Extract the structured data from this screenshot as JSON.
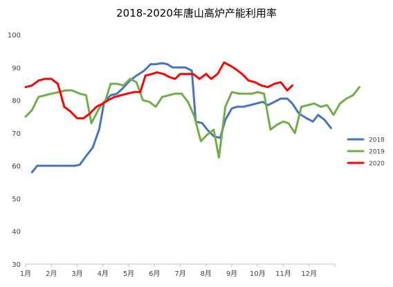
{
  "chart_data": {
    "type": "line",
    "title": "2018-2020年唐山高炉产能利用率",
    "xlabel": "",
    "ylabel": "",
    "ylim": [
      30,
      100
    ],
    "yticks": [
      30,
      40,
      50,
      60,
      70,
      80,
      90,
      100
    ],
    "xlim": [
      1,
      13.2
    ],
    "xticks": [
      {
        "value": 1,
        "label": "1月"
      },
      {
        "value": 2,
        "label": "2月"
      },
      {
        "value": 3,
        "label": "3月"
      },
      {
        "value": 4,
        "label": "4月"
      },
      {
        "value": 5,
        "label": "5月"
      },
      {
        "value": 6,
        "label": "6月"
      },
      {
        "value": 7,
        "label": "7月"
      },
      {
        "value": 8,
        "label": "8月"
      },
      {
        "value": 9,
        "label": "9月"
      },
      {
        "value": 10,
        "label": "10月"
      },
      {
        "value": 11,
        "label": "11月"
      },
      {
        "value": 12,
        "label": "12月"
      }
    ],
    "grid": false,
    "legend_position": "right",
    "series": [
      {
        "name": "2018",
        "color": "#4472C4",
        "points": [
          [
            1.25,
            58
          ],
          [
            1.45,
            60
          ],
          [
            1.7,
            60
          ],
          [
            2.0,
            60
          ],
          [
            2.3,
            60
          ],
          [
            2.6,
            60
          ],
          [
            2.9,
            60
          ],
          [
            3.1,
            60.3
          ],
          [
            3.35,
            63
          ],
          [
            3.6,
            65.5
          ],
          [
            3.85,
            71
          ],
          [
            4.05,
            79.5
          ],
          [
            4.3,
            81.5
          ],
          [
            4.55,
            82
          ],
          [
            4.75,
            83.5
          ],
          [
            5.05,
            86
          ],
          [
            5.3,
            87.5
          ],
          [
            5.6,
            89
          ],
          [
            5.85,
            91
          ],
          [
            6.05,
            91
          ],
          [
            6.3,
            91.3
          ],
          [
            6.5,
            91
          ],
          [
            6.7,
            90
          ],
          [
            7.0,
            90
          ],
          [
            7.2,
            90
          ],
          [
            7.45,
            89
          ],
          [
            7.6,
            73.5
          ],
          [
            7.85,
            73
          ],
          [
            8.05,
            71
          ],
          [
            8.3,
            69
          ],
          [
            8.55,
            68.5
          ],
          [
            8.75,
            74
          ],
          [
            9.0,
            77.5
          ],
          [
            9.2,
            78
          ],
          [
            9.45,
            78
          ],
          [
            9.7,
            78.5
          ],
          [
            9.95,
            79
          ],
          [
            10.2,
            79.5
          ],
          [
            10.4,
            78.5
          ],
          [
            10.65,
            79.5
          ],
          [
            10.9,
            80.5
          ],
          [
            11.15,
            80.5
          ],
          [
            11.35,
            79
          ],
          [
            11.6,
            76
          ],
          [
            11.9,
            74.5
          ],
          [
            12.15,
            73.5
          ],
          [
            12.35,
            75.5
          ],
          [
            12.6,
            74
          ],
          [
            12.85,
            71.5
          ]
        ]
      },
      {
        "name": "2019",
        "color": "#70AD47",
        "points": [
          [
            1.0,
            75
          ],
          [
            1.25,
            77
          ],
          [
            1.5,
            81
          ],
          [
            1.75,
            81.5
          ],
          [
            2.0,
            82
          ],
          [
            2.3,
            82.5
          ],
          [
            2.55,
            83
          ],
          [
            2.8,
            83
          ],
          [
            3.1,
            82
          ],
          [
            3.35,
            81.5
          ],
          [
            3.55,
            73
          ],
          [
            3.85,
            77.5
          ],
          [
            4.1,
            80
          ],
          [
            4.3,
            85
          ],
          [
            4.55,
            85
          ],
          [
            4.8,
            84.5
          ],
          [
            5.05,
            86.5
          ],
          [
            5.3,
            85.5
          ],
          [
            5.55,
            80
          ],
          [
            5.8,
            79.5
          ],
          [
            6.05,
            78
          ],
          [
            6.3,
            81
          ],
          [
            6.55,
            81.5
          ],
          [
            6.8,
            82
          ],
          [
            7.05,
            82
          ],
          [
            7.3,
            79.5
          ],
          [
            7.55,
            75
          ],
          [
            7.8,
            67.5
          ],
          [
            8.05,
            69.5
          ],
          [
            8.3,
            71
          ],
          [
            8.5,
            62.5
          ],
          [
            8.75,
            78
          ],
          [
            9.0,
            82.5
          ],
          [
            9.3,
            82
          ],
          [
            9.55,
            82
          ],
          [
            9.8,
            82
          ],
          [
            10.0,
            82.5
          ],
          [
            10.25,
            82
          ],
          [
            10.5,
            71
          ],
          [
            10.75,
            72.5
          ],
          [
            11.0,
            73.5
          ],
          [
            11.2,
            73
          ],
          [
            11.45,
            70
          ],
          [
            11.7,
            78
          ],
          [
            11.95,
            78.5
          ],
          [
            12.2,
            79
          ],
          [
            12.45,
            78
          ],
          [
            12.7,
            78.5
          ],
          [
            12.95,
            75.5
          ],
          [
            13.2,
            79
          ],
          [
            13.45,
            80.5
          ],
          [
            13.7,
            81.5
          ],
          [
            13.95,
            84
          ]
        ]
      },
      {
        "name": "2020",
        "color": "#FF0000",
        "points": [
          [
            1.0,
            84
          ],
          [
            1.25,
            84.5
          ],
          [
            1.5,
            86
          ],
          [
            1.75,
            86.5
          ],
          [
            2.0,
            86.5
          ],
          [
            2.25,
            85
          ],
          [
            2.5,
            78
          ],
          [
            2.75,
            76.5
          ],
          [
            3.0,
            74.5
          ],
          [
            3.25,
            74.5
          ],
          [
            3.5,
            76
          ],
          [
            3.75,
            78
          ],
          [
            4.0,
            79
          ],
          [
            4.2,
            80
          ],
          [
            4.45,
            81
          ],
          [
            4.7,
            81.5
          ],
          [
            4.95,
            82
          ],
          [
            5.2,
            82.5
          ],
          [
            5.45,
            82.5
          ],
          [
            5.65,
            87.5
          ],
          [
            5.9,
            88
          ],
          [
            6.1,
            88.5
          ],
          [
            6.35,
            88
          ],
          [
            6.6,
            87
          ],
          [
            6.8,
            86.5
          ],
          [
            7.0,
            88
          ],
          [
            7.25,
            88
          ],
          [
            7.5,
            88
          ],
          [
            7.75,
            86.5
          ],
          [
            8.0,
            88
          ],
          [
            8.2,
            86.5
          ],
          [
            8.45,
            88
          ],
          [
            8.7,
            91.5
          ],
          [
            8.95,
            90.5
          ],
          [
            9.15,
            89.5
          ],
          [
            9.4,
            88
          ],
          [
            9.65,
            86
          ],
          [
            9.9,
            85.5
          ],
          [
            10.15,
            84.5
          ],
          [
            10.4,
            84
          ],
          [
            10.65,
            85
          ],
          [
            10.9,
            85.5
          ],
          [
            11.15,
            83
          ],
          [
            11.35,
            84.5
          ]
        ]
      }
    ]
  }
}
